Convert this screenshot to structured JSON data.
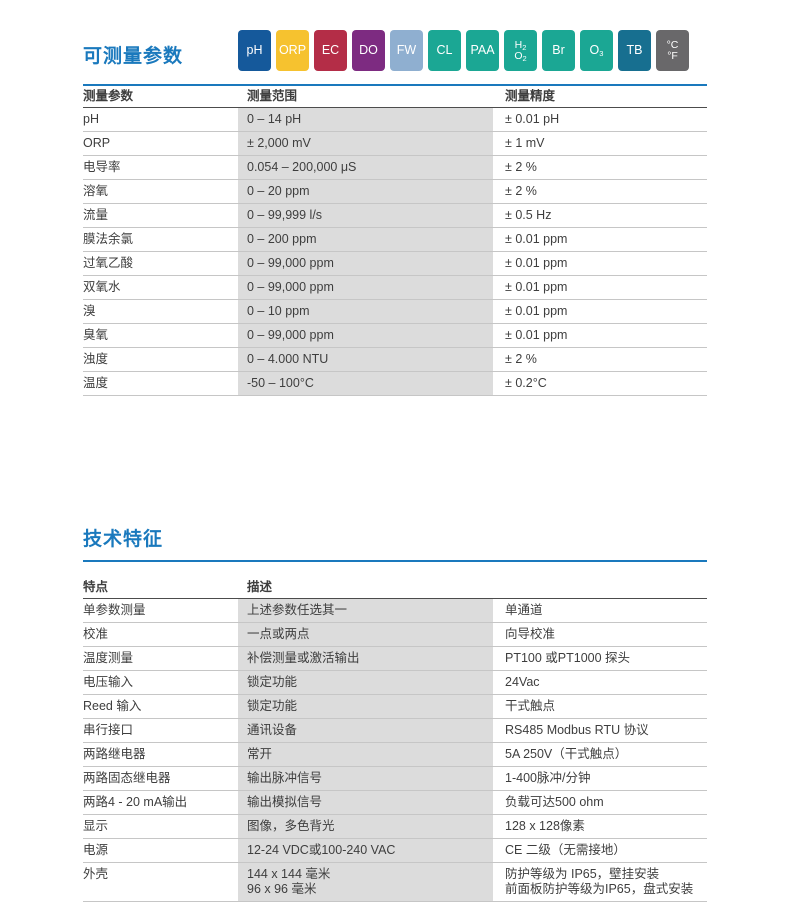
{
  "colors": {
    "accent_blue": "#1a79bd",
    "range_column_bg": "#dcdcdc",
    "header_rule": "#4c4c4c",
    "row_rule": "#c6c6c6",
    "body_text": "#3e3e3e"
  },
  "section1": {
    "title": "可测量参数",
    "badges": [
      {
        "id": "ph",
        "label": "pH",
        "color": "#15599b",
        "lines": [
          {
            "t": "pH",
            "s": ""
          }
        ]
      },
      {
        "id": "orp",
        "label": "ORP",
        "color": "#f6c22f",
        "lines": [
          {
            "t": "ORP",
            "s": ""
          }
        ]
      },
      {
        "id": "ec",
        "label": "EC",
        "color": "#b42d47",
        "lines": [
          {
            "t": "EC",
            "s": ""
          }
        ]
      },
      {
        "id": "do",
        "label": "DO",
        "color": "#7d2b81",
        "lines": [
          {
            "t": "DO",
            "s": ""
          }
        ]
      },
      {
        "id": "fw",
        "label": "FW",
        "color": "#8fafd0",
        "lines": [
          {
            "t": "FW",
            "s": ""
          }
        ]
      },
      {
        "id": "cl",
        "label": "CL",
        "color": "#1ba794",
        "lines": [
          {
            "t": "CL",
            "s": ""
          }
        ]
      },
      {
        "id": "paa",
        "label": "PAA",
        "color": "#1ba794",
        "lines": [
          {
            "t": "PAA",
            "s": ""
          }
        ]
      },
      {
        "id": "h2o2",
        "label": "H2O2",
        "color": "#1ba794",
        "lines": [
          {
            "t": "H",
            "s": "2"
          },
          {
            "t": "O",
            "s": "2"
          }
        ]
      },
      {
        "id": "br",
        "label": "Br",
        "color": "#1ba794",
        "lines": [
          {
            "t": "Br",
            "s": ""
          }
        ]
      },
      {
        "id": "o3",
        "label": "O3",
        "color": "#1ba794",
        "lines": [
          {
            "t": "O",
            "s": "3"
          }
        ]
      },
      {
        "id": "tb",
        "label": "TB",
        "color": "#176f90",
        "lines": [
          {
            "t": "TB",
            "s": ""
          }
        ]
      },
      {
        "id": "temp",
        "label": "°C°F",
        "color": "#69686a",
        "lines": [
          {
            "t": "°C",
            "s": ""
          },
          {
            "t": "°F",
            "s": ""
          }
        ]
      }
    ],
    "table": {
      "headers": [
        "测量参数",
        "测量范围",
        "测量精度"
      ],
      "rows": [
        [
          "pH",
          "0 – 14 pH",
          "± 0.01 pH"
        ],
        [
          "ORP",
          "± 2,000 mV",
          "± 1 mV"
        ],
        [
          "电导率",
          "0.054 – 200,000 μS",
          "± 2 %"
        ],
        [
          "溶氧",
          "0 – 20 ppm",
          "± 2 %"
        ],
        [
          "流量",
          "0 – 99,999 l/s",
          "± 0.5 Hz"
        ],
        [
          "膜法余氯",
          "0 – 200 ppm",
          "± 0.01 ppm"
        ],
        [
          "过氧乙酸",
          "0 – 99,000 ppm",
          "± 0.01 ppm"
        ],
        [
          "双氧水",
          "0 – 99,000 ppm",
          "± 0.01 ppm"
        ],
        [
          "溴",
          "0 – 10 ppm",
          "± 0.01 ppm"
        ],
        [
          "臭氧",
          "0 – 99,000 ppm",
          "± 0.01 ppm"
        ],
        [
          "浊度",
          "0 – 4.000 NTU",
          "± 2 %"
        ],
        [
          "温度",
          "-50 – 100°C",
          "± 0.2°C"
        ]
      ]
    }
  },
  "section2": {
    "title": "技术特征",
    "table": {
      "headers": [
        "特点",
        "描述",
        ""
      ],
      "rows": [
        [
          "单参数测量",
          "上述参数任选其一",
          "单通道"
        ],
        [
          "校准",
          "一点或两点",
          "向导校准"
        ],
        [
          "温度测量",
          "补偿测量或激活输出",
          "PT100 或PT1000 探头"
        ],
        [
          "电压输入",
          "锁定功能",
          "24Vac"
        ],
        [
          "Reed 输入",
          "锁定功能",
          "干式触点"
        ],
        [
          "串行接口",
          "通讯设备",
          "RS485 Modbus RTU 协议"
        ],
        [
          "两路继电器",
          "常开",
          "5A 250V（干式触点）"
        ],
        [
          "两路固态继电器",
          "输出脉冲信号",
          "1-400脉冲/分钟"
        ],
        [
          "两路4 - 20 mA输出",
          "输出模拟信号",
          "负载可达500 ohm"
        ],
        [
          "显示",
          "图像，多色背光",
          "128 x 128像素"
        ],
        [
          "电源",
          "12-24 VDC或100-240 VAC",
          "CE 二级（无需接地）"
        ],
        [
          "外壳",
          "144 x 144 毫米\n96 x 96 毫米",
          "防护等级为 IP65，壁挂安装\n前面板防护等级为IP65，盘式安装"
        ]
      ]
    }
  }
}
